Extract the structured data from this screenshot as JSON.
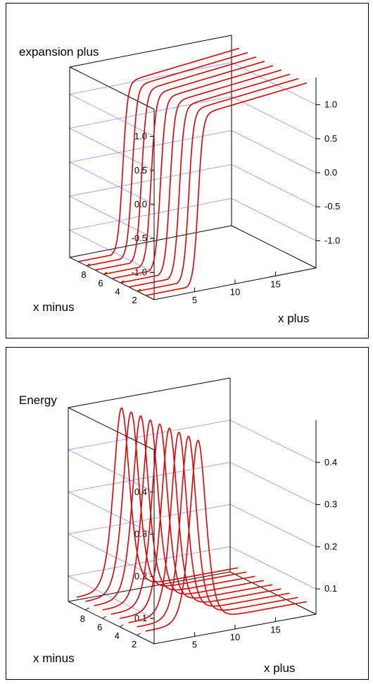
{
  "chart_data": [
    {
      "type": "surface-3d-lines",
      "title": "expansion plus",
      "xlabel": "x plus",
      "ylabel": "x minus",
      "x_ticks": [
        "5",
        "10",
        "15"
      ],
      "y_ticks": [
        "2",
        "4",
        "6",
        "8"
      ],
      "z_ticks": [
        "-1.0",
        "-0.5",
        "0.0",
        "0.5",
        "1.0"
      ],
      "xlim": [
        0,
        20
      ],
      "ylim": [
        0,
        10
      ],
      "zlim": [
        -1.4,
        1.4
      ],
      "x_minus_values": [
        1,
        2,
        3,
        4,
        5,
        6,
        7,
        8,
        9
      ],
      "curve": "tanh",
      "curve_params": {
        "center_x_plus": 6,
        "width": 0.6,
        "low": -1.4,
        "high": 1.1
      },
      "line_color": "#e00000",
      "grid_color": "#8080ff"
    },
    {
      "type": "surface-3d-lines",
      "title": "Energy",
      "xlabel": "x plus",
      "ylabel": "x minus",
      "x_ticks": [
        "5",
        "10",
        "15"
      ],
      "y_ticks": [
        "2",
        "4",
        "6",
        "8"
      ],
      "z_ticks": [
        "0.1",
        "0.2",
        "0.3",
        "0.4"
      ],
      "xlim": [
        0,
        20
      ],
      "ylim": [
        0,
        10
      ],
      "zlim": [
        0.04,
        0.5
      ],
      "x_minus_values": [
        1,
        2,
        3,
        4,
        5,
        6,
        7,
        8,
        9
      ],
      "curve": "peak",
      "curve_params": {
        "center_x_plus": 6,
        "width": 1.3,
        "base": 0.06,
        "peak": 0.49
      },
      "line_color": "#e00000",
      "grid_color": "#8080ff"
    }
  ]
}
